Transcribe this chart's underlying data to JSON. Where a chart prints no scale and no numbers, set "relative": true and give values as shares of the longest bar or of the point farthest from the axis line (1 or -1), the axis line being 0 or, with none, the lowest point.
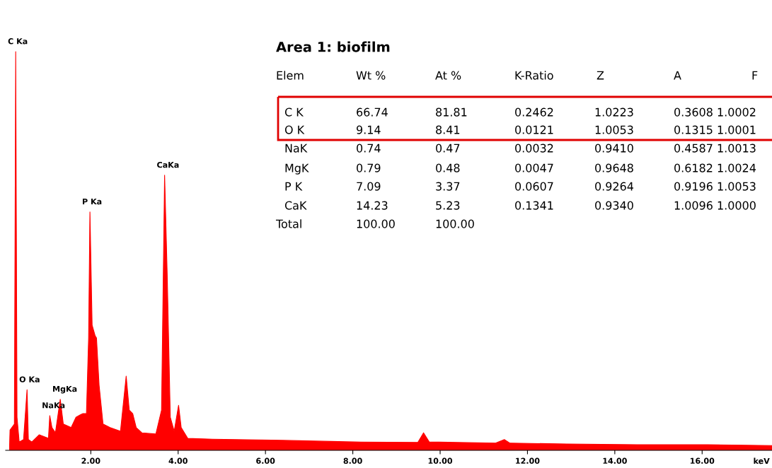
{
  "chart_data": [
    {
      "type": "area",
      "relative": true,
      "color": "#ff0000",
      "xlabel": "keV",
      "xlim": [
        0.05,
        17.6
      ],
      "xticks": [
        {
          "value": 2,
          "label": "2.00"
        },
        {
          "value": 4,
          "label": "4.00"
        },
        {
          "value": 6,
          "label": "6.00"
        },
        {
          "value": 8,
          "label": "8.00"
        },
        {
          "value": 10,
          "label": "10.00"
        },
        {
          "value": 12,
          "label": "12.00"
        },
        {
          "value": 14,
          "label": "14.00"
        },
        {
          "value": 16,
          "label": "16.00"
        }
      ],
      "x": [
        0.14,
        0.15,
        0.25,
        0.28,
        0.31,
        0.36,
        0.46,
        0.54,
        0.57,
        0.65,
        0.82,
        1.03,
        1.06,
        1.11,
        1.19,
        1.3,
        1.37,
        1.55,
        1.66,
        1.76,
        1.82,
        1.9,
        1.95,
        1.98,
        2.03,
        2.1,
        2.13,
        2.19,
        2.28,
        2.44,
        2.68,
        2.81,
        2.88,
        2.96,
        3.04,
        3.17,
        3.49,
        3.62,
        3.69,
        3.75,
        3.82,
        3.91,
        4.01,
        4.07,
        4.22,
        4.79,
        6.41,
        8.03,
        9.49,
        9.62,
        9.75,
        11.27,
        11.47,
        11.6,
        12.9,
        14.51,
        16.13,
        17.6
      ],
      "values": [
        0.012,
        0.051,
        0.066,
        1.0,
        0.083,
        0.021,
        0.027,
        0.152,
        0.027,
        0.021,
        0.039,
        0.03,
        0.087,
        0.057,
        0.044,
        0.128,
        0.066,
        0.057,
        0.083,
        0.089,
        0.092,
        0.092,
        0.282,
        0.598,
        0.314,
        0.287,
        0.282,
        0.163,
        0.066,
        0.057,
        0.048,
        0.186,
        0.101,
        0.092,
        0.057,
        0.044,
        0.041,
        0.101,
        0.69,
        0.438,
        0.083,
        0.048,
        0.113,
        0.057,
        0.03,
        0.028,
        0.025,
        0.021,
        0.02,
        0.044,
        0.021,
        0.018,
        0.027,
        0.018,
        0.016,
        0.014,
        0.014,
        0.012
      ],
      "annotations": [
        {
          "text": "C Ka",
          "x": 0.28,
          "y": 1.0
        },
        {
          "text": "O Ka",
          "x": 0.54,
          "y": 0.152
        },
        {
          "text": "NaKa",
          "x": 1.06,
          "y": 0.087
        },
        {
          "text": "MgKa",
          "x": 1.3,
          "y": 0.128
        },
        {
          "text": "P Ka",
          "x": 1.98,
          "y": 0.598
        },
        {
          "text": "CaKa",
          "x": 3.69,
          "y": 0.69
        }
      ]
    },
    {
      "type": "other",
      "title": "Area 1: biofilm",
      "categories": [
        "Elem",
        "Wt %",
        "At %",
        "K-Ratio",
        "Z",
        "A",
        "F"
      ],
      "cell_labels": [
        [
          "C K",
          "66.74",
          "81.81",
          "0.2462",
          "1.0223",
          "0.3608",
          "1.0002"
        ],
        [
          "O K",
          "9.14",
          "8.41",
          "0.0121",
          "1.0053",
          "0.1315",
          "1.0001"
        ],
        [
          "NaK",
          "0.74",
          "0.47",
          "0.0032",
          "0.9410",
          "0.4587",
          "1.0013"
        ],
        [
          "MgK",
          "0.79",
          "0.48",
          "0.0047",
          "0.9648",
          "0.6182",
          "1.0024"
        ],
        [
          "P K",
          "7.09",
          "3.37",
          "0.0607",
          "0.9264",
          "0.9196",
          "1.0053"
        ],
        [
          "CaK",
          "14.23",
          "5.23",
          "0.1341",
          "0.9340",
          "1.0096",
          "1.0000"
        ],
        [
          "Total",
          "100.00",
          "100.00",
          null,
          null,
          null,
          null
        ]
      ]
    }
  ]
}
